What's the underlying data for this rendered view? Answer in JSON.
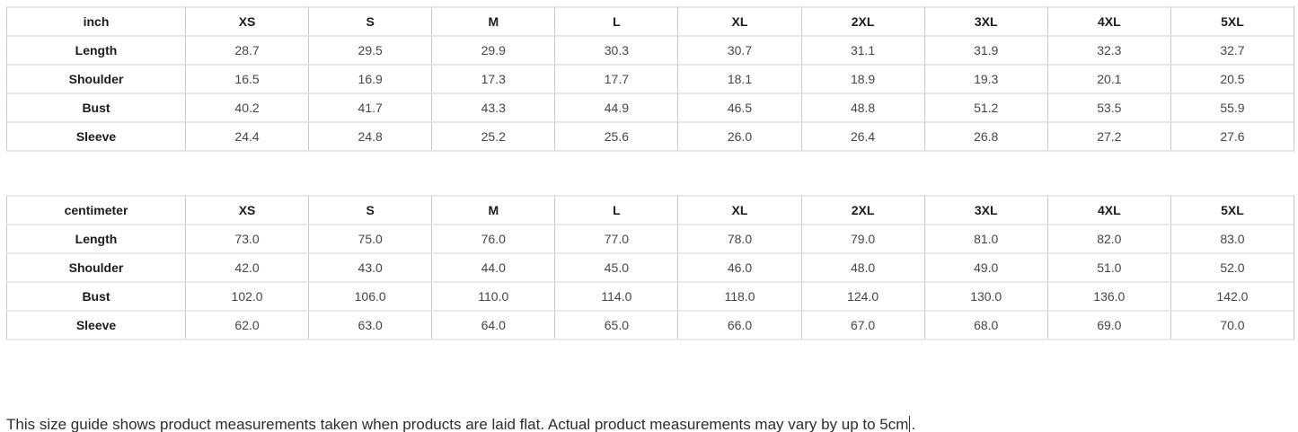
{
  "size_guide": {
    "sizes": [
      "XS",
      "S",
      "M",
      "L",
      "XL",
      "2XL",
      "3XL",
      "4XL",
      "5XL"
    ],
    "tables": [
      {
        "unit_label": "inch",
        "rows": [
          {
            "label": "Length",
            "values": [
              "28.7",
              "29.5",
              "29.9",
              "30.3",
              "30.7",
              "31.1",
              "31.9",
              "32.3",
              "32.7"
            ]
          },
          {
            "label": "Shoulder",
            "values": [
              "16.5",
              "16.9",
              "17.3",
              "17.7",
              "18.1",
              "18.9",
              "19.3",
              "20.1",
              "20.5"
            ]
          },
          {
            "label": "Bust",
            "values": [
              "40.2",
              "41.7",
              "43.3",
              "44.9",
              "46.5",
              "48.8",
              "51.2",
              "53.5",
              "55.9"
            ]
          },
          {
            "label": "Sleeve",
            "values": [
              "24.4",
              "24.8",
              "25.2",
              "25.6",
              "26.0",
              "26.4",
              "26.8",
              "27.2",
              "27.6"
            ]
          }
        ]
      },
      {
        "unit_label": "centimeter",
        "rows": [
          {
            "label": "Length",
            "values": [
              "73.0",
              "75.0",
              "76.0",
              "77.0",
              "78.0",
              "79.0",
              "81.0",
              "82.0",
              "83.0"
            ]
          },
          {
            "label": "Shoulder",
            "values": [
              "42.0",
              "43.0",
              "44.0",
              "45.0",
              "46.0",
              "48.0",
              "49.0",
              "51.0",
              "52.0"
            ]
          },
          {
            "label": "Bust",
            "values": [
              "102.0",
              "106.0",
              "110.0",
              "114.0",
              "118.0",
              "124.0",
              "130.0",
              "136.0",
              "142.0"
            ]
          },
          {
            "label": "Sleeve",
            "values": [
              "62.0",
              "63.0",
              "64.0",
              "65.0",
              "66.0",
              "67.0",
              "68.0",
              "69.0",
              "70.0"
            ]
          }
        ]
      }
    ],
    "note": {
      "before_caret": "This size guide shows product measurements taken when products are laid flat. Actual product measurements may vary by up to 5cm",
      "after_caret": "."
    }
  },
  "colors": {
    "background": "#ffffff",
    "border_vertical": "#c9c9c9",
    "border_horizontal": "#e9e9e9",
    "label_text": "#1c1c1c",
    "value_text": "#454545",
    "note_text": "#2d2d2d"
  }
}
